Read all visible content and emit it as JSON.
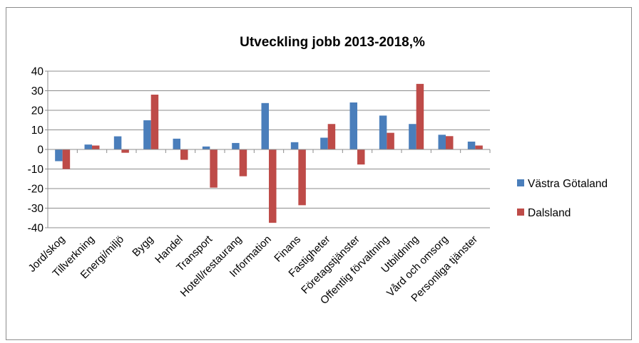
{
  "chart_data": {
    "type": "bar",
    "title": "Utveckling jobb 2013-2018,%",
    "xlabel": "",
    "ylabel": "",
    "ylim": [
      -40,
      40
    ],
    "ytick_step": 10,
    "grid": true,
    "legend_position": "right",
    "categories": [
      "Jord/skog",
      "Tillverkning",
      "Energi/miljö",
      "Bygg",
      "Handel",
      "Transport",
      "Hotell/restaurang",
      "Information",
      "Finans",
      "Fastigheter",
      "Företagstjänster",
      "Offentlig förvaltning",
      "Utbildning",
      "Vård och omsorg",
      "Personliga tjänster"
    ],
    "series": [
      {
        "name": "Västra Götaland",
        "color": "#4a7ebb",
        "values": [
          -6,
          2.5,
          6.7,
          14.9,
          5.5,
          1.5,
          3.3,
          23.7,
          3.7,
          6,
          24,
          17.3,
          13,
          7.5,
          4
        ]
      },
      {
        "name": "Dalsland",
        "color": "#be4b48",
        "values": [
          -10,
          2,
          -1.7,
          28,
          -5.3,
          -19.5,
          -13.7,
          -37.5,
          -28.5,
          13,
          -7.7,
          8.5,
          33.5,
          6.8,
          2
        ]
      }
    ]
  }
}
